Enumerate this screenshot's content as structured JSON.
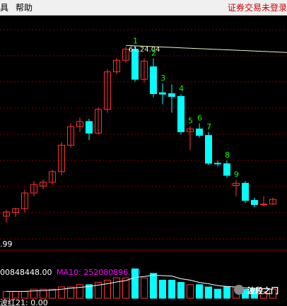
{
  "menubar": {
    "items": [
      "具",
      "帮助"
    ],
    "status": "证券交易未登录"
  },
  "colors": {
    "background": "#000000",
    "up": "#ff3232",
    "down": "#00ffff",
    "grid": "#7f0000",
    "wave_label": "#00ff00",
    "high_marker": "#f0f0c8",
    "ma10_label": "#ff00ff",
    "volume_text": "#ffffff"
  },
  "chart_data": {
    "type": "candlestick",
    "price_scale_label": ".99",
    "high_marker_label": "61.24.04",
    "candles": [
      {
        "open": 25.2,
        "high": 26.5,
        "low": 23.8,
        "close": 26.1
      },
      {
        "open": 26.0,
        "high": 27.0,
        "low": 25.0,
        "close": 26.8
      },
      {
        "open": 26.8,
        "high": 30.9,
        "low": 26.0,
        "close": 30.2
      },
      {
        "open": 30.2,
        "high": 32.8,
        "low": 29.5,
        "close": 32.0
      },
      {
        "open": 31.7,
        "high": 33.1,
        "low": 31.0,
        "close": 32.5
      },
      {
        "open": 32.5,
        "high": 35.2,
        "low": 32.0,
        "close": 34.8
      },
      {
        "open": 34.8,
        "high": 41.2,
        "low": 34.0,
        "close": 40.5
      },
      {
        "open": 40.5,
        "high": 45.2,
        "low": 40.0,
        "close": 44.5
      },
      {
        "open": 44.5,
        "high": 46.5,
        "low": 43.3,
        "close": 45.6
      },
      {
        "open": 45.6,
        "high": 46.2,
        "low": 41.6,
        "close": 43.1
      },
      {
        "open": 43.1,
        "high": 48.7,
        "low": 42.8,
        "close": 48.2
      },
      {
        "open": 48.2,
        "high": 56.9,
        "low": 47.5,
        "close": 56.3
      },
      {
        "open": 56.3,
        "high": 59.3,
        "low": 55.8,
        "close": 58.8
      },
      {
        "open": 58.8,
        "high": 61.7,
        "low": 58.3,
        "close": 61.2
      },
      {
        "open": 61.2,
        "high": 61.8,
        "low": 54.2,
        "close": 54.7
      },
      {
        "open": 54.7,
        "high": 59.2,
        "low": 54.0,
        "close": 58.6
      },
      {
        "open": 57.4,
        "high": 59.2,
        "low": 50.8,
        "close": 51.6
      },
      {
        "open": 51.8,
        "high": 53.8,
        "low": 49.3,
        "close": 51.5
      },
      {
        "open": 51.6,
        "high": 53.6,
        "low": 47.5,
        "close": 51.0
      },
      {
        "open": 51.0,
        "high": 51.5,
        "low": 42.8,
        "close": 43.4
      },
      {
        "open": 43.4,
        "high": 44.6,
        "low": 39.4,
        "close": 44.0
      },
      {
        "open": 44.0,
        "high": 45.2,
        "low": 42.1,
        "close": 42.6
      },
      {
        "open": 42.6,
        "high": 43.3,
        "low": 36.2,
        "close": 36.6
      },
      {
        "open": 36.6,
        "high": 37.2,
        "low": 35.9,
        "close": 36.5
      },
      {
        "open": 36.5,
        "high": 37.2,
        "low": 33.5,
        "close": 34.0
      },
      {
        "open": 31.8,
        "high": 33.0,
        "low": 29.5,
        "close": 32.3
      },
      {
        "open": 32.3,
        "high": 32.8,
        "low": 28.0,
        "close": 28.6
      },
      {
        "open": 28.6,
        "high": 29.2,
        "low": 27.1,
        "close": 27.7
      },
      {
        "open": 27.7,
        "high": 29.5,
        "low": 27.3,
        "close": 27.8
      },
      {
        "open": 27.8,
        "high": 29.2,
        "low": 27.6,
        "close": 28.8
      }
    ],
    "wave_labels": [
      {
        "candle": 14,
        "label": "1"
      },
      {
        "candle": 16,
        "label": "2"
      },
      {
        "candle": 17,
        "label": "3"
      },
      {
        "candle": 19,
        "label": "4"
      },
      {
        "candle": 20,
        "label": "5"
      },
      {
        "candle": 21,
        "label": "6"
      },
      {
        "candle": 22,
        "label": "7"
      },
      {
        "candle": 24,
        "label": "8"
      },
      {
        "candle": 25,
        "label": "9"
      }
    ],
    "volume_text": "00848448.00",
    "ma10_text": "MA10: 252080896.00",
    "volumes": [
      3,
      3,
      3,
      4,
      4,
      4,
      5,
      5,
      6,
      6,
      7,
      8,
      9,
      9,
      13,
      9,
      11,
      8,
      8,
      7,
      6,
      6,
      5,
      4,
      5,
      5,
      4,
      4,
      3,
      4
    ],
    "footer_text": "波红21: 0.00",
    "watermark": "波段之门"
  }
}
